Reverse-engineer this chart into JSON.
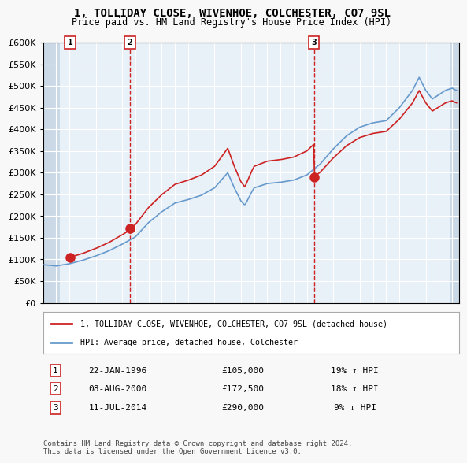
{
  "title_line1": "1, TOLLIDAY CLOSE, WIVENHOE, COLCHESTER, CO7 9SL",
  "title_line2": "Price paid vs. HM Land Registry's House Price Index (HPI)",
  "xlabel": "",
  "ylabel": "",
  "ylim": [
    0,
    600000
  ],
  "yticks": [
    0,
    50000,
    100000,
    150000,
    200000,
    250000,
    300000,
    350000,
    400000,
    450000,
    500000,
    550000,
    600000
  ],
  "xlim_start": 1994.0,
  "xlim_end": 2025.5,
  "sale_dates": [
    "1996-01-22",
    "2000-08-08",
    "2014-07-11"
  ],
  "sale_prices": [
    105000,
    172500,
    290000
  ],
  "sale_labels": [
    "1",
    "2",
    "3"
  ],
  "vline_x": [
    2000.6,
    2014.52
  ],
  "legend_line1": "1, TOLLIDAY CLOSE, WIVENHOE, COLCHESTER, CO7 9SL (detached house)",
  "legend_line2": "HPI: Average price, detached house, Colchester",
  "table_data": [
    [
      "1",
      "22-JAN-1996",
      "£105,000",
      "19% ↑ HPI"
    ],
    [
      "2",
      "08-AUG-2000",
      "£172,500",
      "18% ↑ HPI"
    ],
    [
      "3",
      "11-JUL-2014",
      "£290,000",
      "9% ↓ HPI"
    ]
  ],
  "footer": "Contains HM Land Registry data © Crown copyright and database right 2024.\nThis data is licensed under the Open Government Licence v3.0.",
  "hpi_color": "#6699cc",
  "price_color": "#cc2222",
  "sale_dot_color": "#cc2222",
  "bg_color": "#ddeeff",
  "plot_bg": "#e8f0f8",
  "hatch_color": "#b0c4d8",
  "grid_color": "#ffffff",
  "vline_color": "#cc2222"
}
